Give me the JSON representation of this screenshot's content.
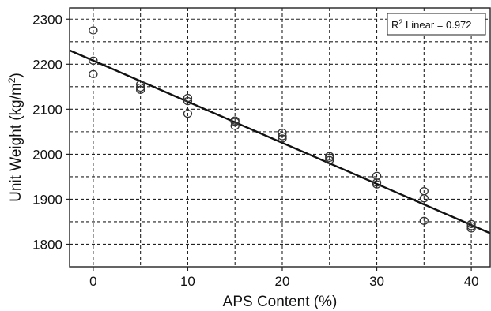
{
  "chart_data": {
    "type": "scatter",
    "title": "",
    "xlabel": "APS Content (%)",
    "ylabel_main": "Unit Weight (kg/m",
    "ylabel_sup": "2",
    "ylabel_close": ")",
    "xlim": [
      -2.5,
      42
    ],
    "ylim": [
      1750,
      2325
    ],
    "x_ticks": [
      0,
      10,
      20,
      30,
      40
    ],
    "y_ticks": [
      1800,
      1900,
      2000,
      2100,
      2200,
      2300
    ],
    "x_grid": [
      0,
      5,
      10,
      15,
      20,
      25,
      30,
      35,
      40
    ],
    "y_grid": [
      1800,
      1850,
      1900,
      1950,
      2000,
      2050,
      2100,
      2150,
      2200,
      2250,
      2300
    ],
    "grid": true,
    "points": [
      {
        "x": 0,
        "y": 2275
      },
      {
        "x": 0,
        "y": 2208
      },
      {
        "x": 0,
        "y": 2178
      },
      {
        "x": 5,
        "y": 2155
      },
      {
        "x": 5,
        "y": 2148
      },
      {
        "x": 5,
        "y": 2143
      },
      {
        "x": 10,
        "y": 2125
      },
      {
        "x": 10,
        "y": 2118
      },
      {
        "x": 10,
        "y": 2090
      },
      {
        "x": 15,
        "y": 2075
      },
      {
        "x": 15,
        "y": 2072
      },
      {
        "x": 15,
        "y": 2063
      },
      {
        "x": 20,
        "y": 2048
      },
      {
        "x": 20,
        "y": 2040
      },
      {
        "x": 20,
        "y": 2035
      },
      {
        "x": 25,
        "y": 1996
      },
      {
        "x": 25,
        "y": 1992
      },
      {
        "x": 25,
        "y": 1987
      },
      {
        "x": 30,
        "y": 1952
      },
      {
        "x": 30,
        "y": 1937
      },
      {
        "x": 30,
        "y": 1933
      },
      {
        "x": 35,
        "y": 1918
      },
      {
        "x": 35,
        "y": 1902
      },
      {
        "x": 35,
        "y": 1852
      },
      {
        "x": 40,
        "y": 1845
      },
      {
        "x": 40,
        "y": 1840
      },
      {
        "x": 40,
        "y": 1835
      }
    ],
    "fit_line": {
      "type": "linear",
      "intercept": 2208,
      "slope": -9.13,
      "x_range": [
        -2.5,
        42
      ]
    },
    "legend": {
      "position": "top-right",
      "r2_main": "R",
      "r2_sup": "2",
      "r2_rest": " Linear = 0.972"
    },
    "colors": {
      "marker": "#333333",
      "line": "#111111",
      "grid": "#222222",
      "frame": "#222222"
    }
  }
}
